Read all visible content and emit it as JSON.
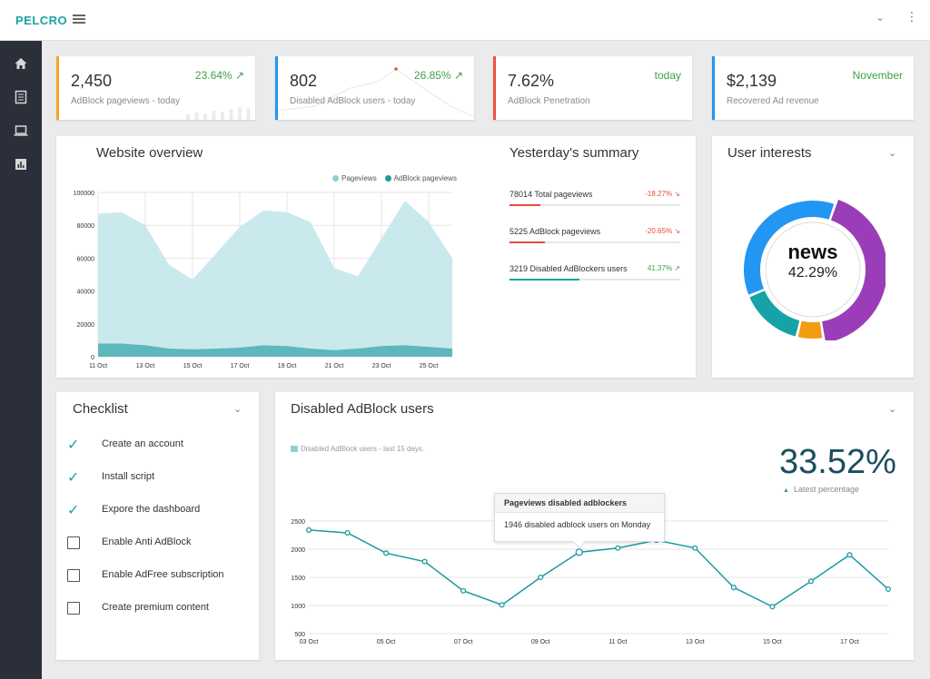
{
  "app": {
    "logo": "PELCRO"
  },
  "colors": {
    "teal": "#1aa3a3",
    "area_light": "#c4e7ea",
    "area_dark": "#5cb8bd",
    "green": "#3ca047",
    "red": "#e74c3c",
    "orange": "#f39c12",
    "blue": "#2196f3",
    "purple": "#9b3db8"
  },
  "sidebar": {
    "items": [
      {
        "icon": "home-icon"
      },
      {
        "icon": "document-icon"
      },
      {
        "icon": "laptop-icon"
      },
      {
        "icon": "bar-chart-icon"
      }
    ]
  },
  "stats": [
    {
      "value": "2,450",
      "label": "AdBlock pageviews - today",
      "change": "23.64% ↗",
      "accent": "#f5a623"
    },
    {
      "value": "802",
      "label": "Disabled AdBlock users - today",
      "change": "26.85% ↗",
      "accent": "#2196f3"
    },
    {
      "value": "7.62%",
      "label": "AdBlock Penetration",
      "change": "today",
      "accent": "#e8553e"
    },
    {
      "value": "$2,139",
      "label": "Recovered Ad revenue",
      "change": "November",
      "accent": "#2196f3"
    }
  ],
  "overview": {
    "title": "Website overview",
    "legend": [
      "Pageviews",
      "AdBlock pageviews"
    ]
  },
  "summary": {
    "title": "Yesterday's summary",
    "rows": [
      {
        "label": "78014 Total pageviews",
        "pct": "-18.27% ↘",
        "progress": 0.18
      },
      {
        "label": "5225 AdBlock pageviews",
        "pct": "-20.65% ↘",
        "progress": 0.21
      },
      {
        "label": "3219 Disabled AdBlockers users",
        "pct": "41.37% ↗",
        "progress": 0.41
      }
    ]
  },
  "interests": {
    "title": "User interests",
    "center_label": "news",
    "center_value": "42.29%"
  },
  "checklist": {
    "title": "Checklist",
    "items": [
      {
        "label": "Create an account",
        "done": true
      },
      {
        "label": "Install script",
        "done": true
      },
      {
        "label": "Expore the dashboard",
        "done": true
      },
      {
        "label": "Enable Anti AdBlock",
        "done": false
      },
      {
        "label": "Enable AdFree subscription",
        "done": false
      },
      {
        "label": "Create premium content",
        "done": false
      }
    ]
  },
  "disabled_users": {
    "title": "Disabled AdBlock users",
    "legend": "Disabled AdBlock users - last 15 days.",
    "big_value": "33.52%",
    "big_label": "Latest percentage",
    "tooltip_title": "Pageviews disabled adblockers",
    "tooltip_body": "1946 disabled adblock users on Monday"
  },
  "chart_data": [
    {
      "type": "area",
      "x": [
        "11 Oct",
        "12 Oct",
        "13 Oct",
        "14 Oct",
        "15 Oct",
        "16 Oct",
        "17 Oct",
        "18 Oct",
        "19 Oct",
        "20 Oct",
        "21 Oct",
        "22 Oct",
        "23 Oct",
        "24 Oct",
        "25 Oct",
        "26 Oct"
      ],
      "x_ticks": [
        "11 Oct",
        "13 Oct",
        "15 Oct",
        "17 Oct",
        "19 Oct",
        "21 Oct",
        "23 Oct",
        "25 Oct"
      ],
      "y_ticks": [
        0,
        20000,
        40000,
        60000,
        80000,
        100000
      ],
      "ylim": [
        0,
        100000
      ],
      "series": [
        {
          "name": "Pageviews",
          "values": [
            87000,
            88000,
            80000,
            56000,
            47000,
            63000,
            79000,
            89000,
            88000,
            82000,
            54000,
            49000,
            72000,
            95000,
            82000,
            60000
          ]
        },
        {
          "name": "AdBlock pageviews",
          "values": [
            8000,
            8000,
            7000,
            5000,
            4500,
            5000,
            5500,
            7000,
            6500,
            5000,
            4000,
            5000,
            6500,
            7000,
            6000,
            5000
          ]
        }
      ],
      "grid": true
    },
    {
      "type": "pie",
      "labels": [
        "news",
        "blue",
        "teal",
        "orange"
      ],
      "values": [
        42.29,
        36.5,
        15.0,
        6.2
      ],
      "colors": [
        "#9b3db8",
        "#2196f3",
        "#16a3a8",
        "#f39c12"
      ]
    },
    {
      "type": "line",
      "x": [
        "03 Oct",
        "04 Oct",
        "05 Oct",
        "06 Oct",
        "07 Oct",
        "08 Oct",
        "09 Oct",
        "10 Oct",
        "11 Oct",
        "12 Oct",
        "13 Oct",
        "14 Oct",
        "15 Oct",
        "16 Oct",
        "17 Oct",
        "18 Oct"
      ],
      "x_ticks": [
        "03 Oct",
        "05 Oct",
        "07 Oct",
        "09 Oct",
        "11 Oct",
        "13 Oct",
        "15 Oct",
        "17 Oct"
      ],
      "y_ticks": [
        500,
        1000,
        1500,
        2000,
        2500
      ],
      "ylim": [
        500,
        2600
      ],
      "series": [
        {
          "name": "Disabled AdBlock users",
          "values": [
            2340,
            2290,
            1930,
            1780,
            1260,
            1010,
            1500,
            1946,
            2020,
            2160,
            2020,
            1320,
            980,
            1430,
            1900,
            1290
          ]
        }
      ],
      "grid": true
    }
  ]
}
